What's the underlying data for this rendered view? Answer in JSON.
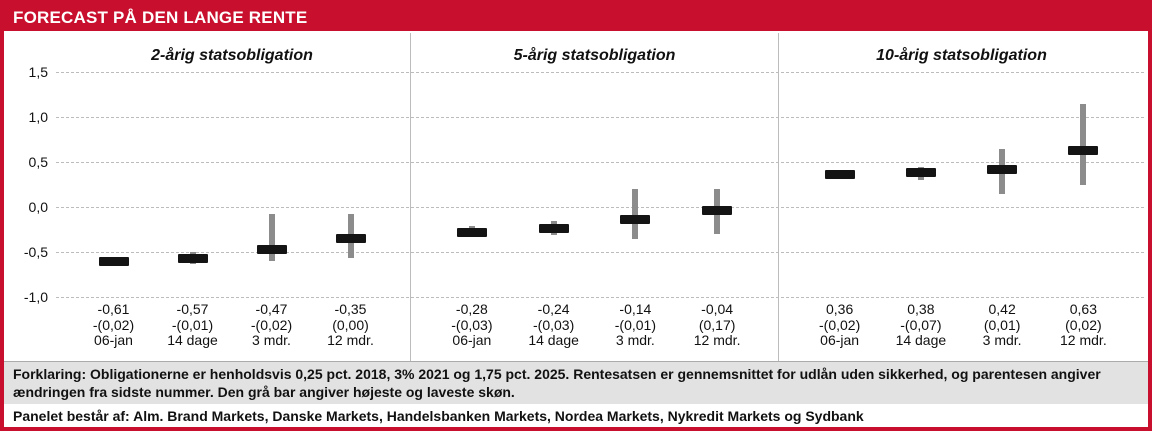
{
  "chart_data": {
    "type": "bar",
    "title": "FORECAST PÅ DEN LANGE RENTE",
    "grid": "dashed-horizontal",
    "legend": "none",
    "y_axis": {
      "min": -1.0,
      "max": 1.5,
      "step": 0.5,
      "ticks": [
        {
          "label": "1,5",
          "value": 1.5
        },
        {
          "label": "1,0",
          "value": 1.0
        },
        {
          "label": "0,5",
          "value": 0.5
        },
        {
          "label": "0,0",
          "value": 0.0
        },
        {
          "label": "-0,5",
          "value": -0.5
        },
        {
          "label": "-1,0",
          "value": -1.0
        }
      ]
    },
    "panels": [
      {
        "title": "2-årig statsobligation",
        "points": [
          {
            "value": -0.61,
            "range": [
              -0.66,
              -0.55
            ],
            "value_label": "-0,61",
            "change_label": "-(0,02)",
            "time_label": "06-jan"
          },
          {
            "value": -0.57,
            "range": [
              -0.63,
              -0.5
            ],
            "value_label": "-0,57",
            "change_label": "-(0,01)",
            "time_label": "14 dage"
          },
          {
            "value": -0.47,
            "range": [
              -0.6,
              -0.08
            ],
            "value_label": "-0,47",
            "change_label": "-(0,02)",
            "time_label": "3 mdr."
          },
          {
            "value": -0.35,
            "range": [
              -0.57,
              -0.08
            ],
            "value_label": "-0,35",
            "change_label": "(0,00)",
            "time_label": "12 mdr."
          }
        ]
      },
      {
        "title": "5-årig statsobligation",
        "points": [
          {
            "value": -0.28,
            "range": [
              -0.33,
              -0.21
            ],
            "value_label": "-0,28",
            "change_label": "-(0,03)",
            "time_label": "06-jan"
          },
          {
            "value": -0.24,
            "range": [
              -0.31,
              -0.16
            ],
            "value_label": "-0,24",
            "change_label": "-(0,03)",
            "time_label": "14 dage"
          },
          {
            "value": -0.14,
            "range": [
              -0.35,
              0.2
            ],
            "value_label": "-0,14",
            "change_label": "-(0,01)",
            "time_label": "3 mdr."
          },
          {
            "value": -0.04,
            "range": [
              -0.3,
              0.2
            ],
            "value_label": "-0,04",
            "change_label": "(0,17)",
            "time_label": "12 mdr."
          }
        ]
      },
      {
        "title": "10-årig statsobligation",
        "points": [
          {
            "value": 0.36,
            "range": [
              0.32,
              0.4
            ],
            "value_label": "0,36",
            "change_label": "-(0,02)",
            "time_label": "06-jan"
          },
          {
            "value": 0.38,
            "range": [
              0.3,
              0.45
            ],
            "value_label": "0,38",
            "change_label": "-(0,07)",
            "time_label": "14 dage"
          },
          {
            "value": 0.42,
            "range": [
              0.15,
              0.65
            ],
            "value_label": "0,42",
            "change_label": "(0,01)",
            "time_label": "3 mdr."
          },
          {
            "value": 0.63,
            "range": [
              0.25,
              1.15
            ],
            "value_label": "0,63",
            "change_label": "(0,02)",
            "time_label": "12 mdr."
          }
        ]
      }
    ]
  },
  "footer": {
    "explanation": "Forklaring: Obligationerne er henholdsvis 0,25 pct. 2018, 3% 2021 og 1,75 pct. 2025. Rentesatsen er gennemsnittet for udlån uden sikkerhed, og parentesen angiver ændringen fra sidste nummer. Den grå bar angiver højeste og laveste skøn.",
    "panel_members": "Panelet består af: Alm. Brand Markets, Danske Markets, Handelsbanken Markets, Nordea Markets, Nykredit Markets og Sydbank"
  },
  "colors": {
    "accent_red": "#c8102e",
    "bar_black": "#141414",
    "range_grey": "#8c8c8c",
    "gridline_grey": "#bcbcbc",
    "footer_bg": "#e2e2e2"
  }
}
